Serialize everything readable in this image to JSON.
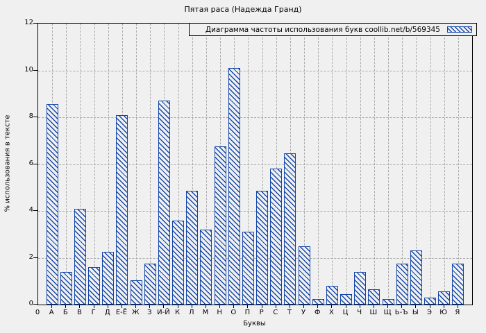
{
  "chart_data": {
    "type": "bar",
    "title": "Пятая раса (Надежда Гранд)",
    "legend_label": "Диаграмма частоты использования букв coollib.net/b/569345",
    "legend_position": "top-right",
    "xlabel": "Буквы",
    "ylabel": "% использования в тексте",
    "origin_label": "0",
    "ylim": [
      0,
      12
    ],
    "yticks": [
      0,
      2,
      4,
      6,
      8,
      10,
      12
    ],
    "grid": true,
    "hatch_style": "diagonal-down",
    "categories": [
      "А",
      "Б",
      "В",
      "Г",
      "Д",
      "Е-Ё",
      "Ж",
      "З",
      "И-Й",
      "К",
      "Л",
      "М",
      "Н",
      "О",
      "П",
      "Р",
      "С",
      "Т",
      "У",
      "Ф",
      "Х",
      "Ц",
      "Ч",
      "Ш",
      "Щ",
      "Ь-Ъ",
      "Ы",
      "Э",
      "Ю",
      "Я"
    ],
    "values": [
      8.55,
      1.4,
      4.1,
      1.6,
      2.25,
      8.1,
      1.05,
      1.75,
      8.7,
      3.6,
      4.85,
      3.2,
      6.75,
      10.1,
      3.1,
      4.85,
      5.8,
      6.45,
      2.5,
      0.25,
      0.8,
      0.45,
      1.4,
      0.65,
      0.25,
      1.75,
      2.3,
      0.3,
      0.55,
      1.75
    ],
    "colors": {
      "bar": "#1346a8",
      "background": "#f0f0f0",
      "grid": "#a9a9a9",
      "frame": "#000000",
      "text": "#000000"
    }
  }
}
